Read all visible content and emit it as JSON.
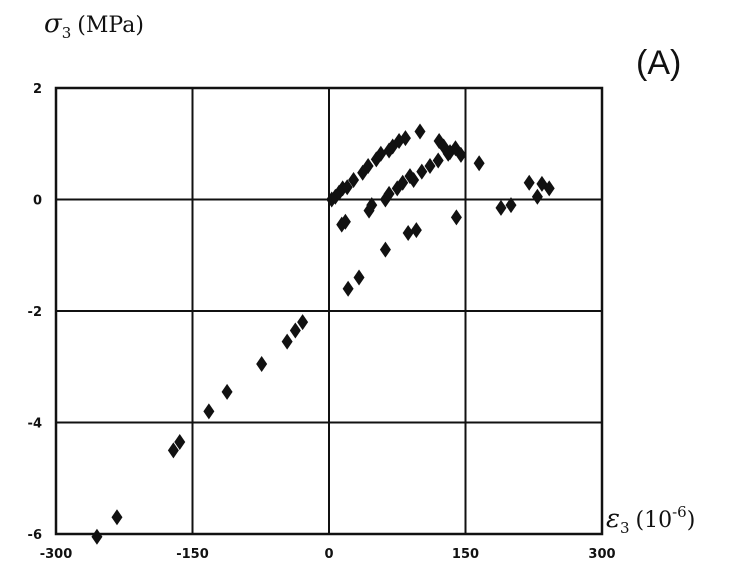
{
  "chart_data": {
    "type": "scatter",
    "panel_label": "(A)",
    "ylabel": {
      "symbol": "σ",
      "subscript": "3",
      "unit": "(MPa)"
    },
    "xlabel": {
      "symbol": "ε",
      "subscript": "3",
      "unit_base": "(10",
      "unit_exp": "-6",
      "unit_close": ")"
    },
    "xlim": [
      -300,
      300
    ],
    "ylim": [
      -6,
      2
    ],
    "xticks": [
      -300,
      -150,
      0,
      150,
      300
    ],
    "yticks": [
      2,
      0,
      -2,
      -4,
      -6
    ],
    "xtick_labels": [
      "-300",
      "-150",
      "0",
      "150",
      "300"
    ],
    "ytick_labels": [
      "2",
      "0",
      "-2",
      "-4",
      "-6"
    ],
    "grid": true,
    "marker": "diamond",
    "marker_color": "#111111",
    "points": [
      [
        -255,
        -6.05
      ],
      [
        -233,
        -5.7
      ],
      [
        -171,
        -4.5
      ],
      [
        -164,
        -4.35
      ],
      [
        -132,
        -3.8
      ],
      [
        -112,
        -3.45
      ],
      [
        -74,
        -2.95
      ],
      [
        -46,
        -2.55
      ],
      [
        -37,
        -2.35
      ],
      [
        -29,
        -2.2
      ],
      [
        3,
        0.0
      ],
      [
        7,
        0.05
      ],
      [
        11,
        0.12
      ],
      [
        15,
        0.2
      ],
      [
        20,
        0.22
      ],
      [
        27,
        0.35
      ],
      [
        37,
        0.48
      ],
      [
        43,
        0.6
      ],
      [
        52,
        0.72
      ],
      [
        57,
        0.82
      ],
      [
        66,
        0.88
      ],
      [
        70,
        0.95
      ],
      [
        77,
        1.05
      ],
      [
        84,
        1.1
      ],
      [
        100,
        1.22
      ],
      [
        121,
        1.05
      ],
      [
        126,
        0.95
      ],
      [
        133,
        0.85
      ],
      [
        145,
        0.8
      ],
      [
        165,
        0.65
      ],
      [
        14,
        -0.45
      ],
      [
        18,
        -0.4
      ],
      [
        21,
        -1.6
      ],
      [
        33,
        -1.4
      ],
      [
        44,
        -0.2
      ],
      [
        47,
        -0.1
      ],
      [
        62,
        0.0
      ],
      [
        66,
        0.1
      ],
      [
        75,
        0.2
      ],
      [
        81,
        0.3
      ],
      [
        89,
        0.42
      ],
      [
        93,
        0.35
      ],
      [
        102,
        0.5
      ],
      [
        111,
        0.6
      ],
      [
        120,
        0.7
      ],
      [
        131,
        0.82
      ],
      [
        139,
        0.92
      ],
      [
        62,
        -0.9
      ],
      [
        87,
        -0.6
      ],
      [
        96,
        -0.55
      ],
      [
        140,
        -0.32
      ],
      [
        189,
        -0.15
      ],
      [
        200,
        -0.1
      ],
      [
        220,
        0.3
      ],
      [
        229,
        0.05
      ],
      [
        234,
        0.28
      ],
      [
        242,
        0.2
      ]
    ]
  }
}
